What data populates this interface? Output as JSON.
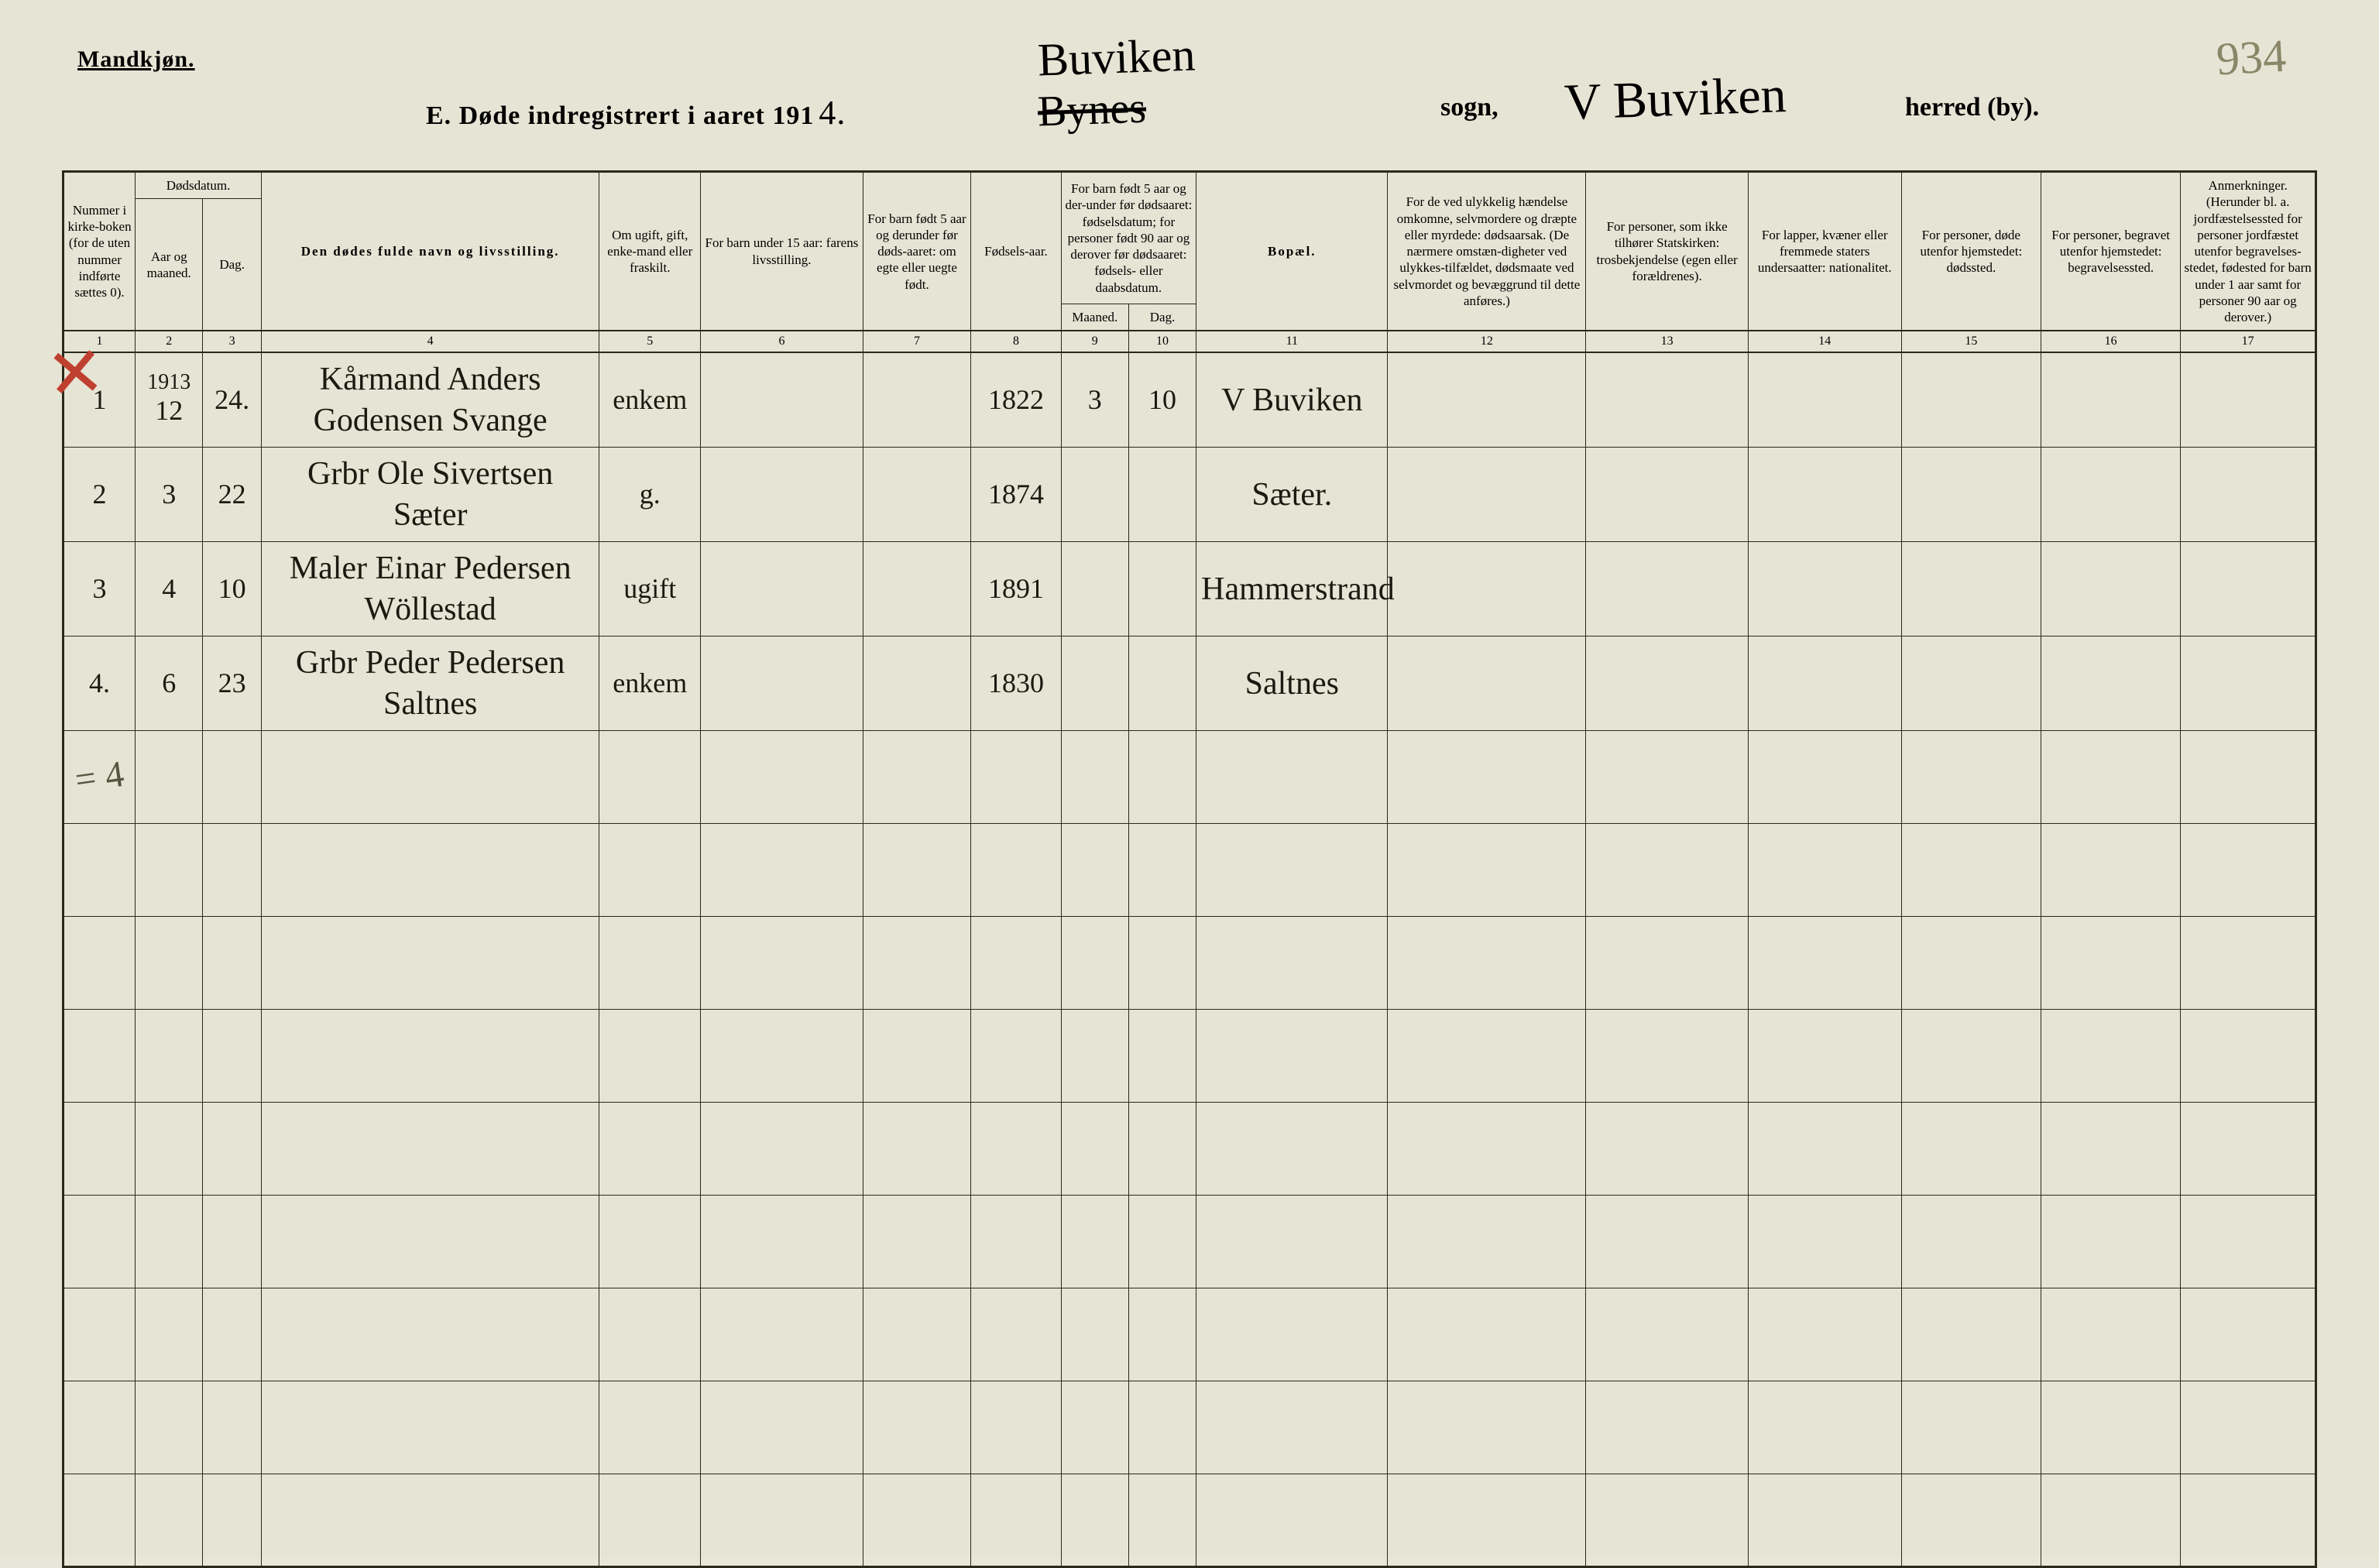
{
  "header": {
    "gender": "Mandkjøn.",
    "title_prefix": "E.  Døde indregistrert i aaret 191",
    "title_year_handwritten": "4.",
    "sogn_script_top": "Buviken",
    "sogn_script_struck": "Bynes",
    "sogn_label": "sogn,",
    "herred_script": "V Buviken",
    "herred_label": "herred (by).",
    "page_number": "934"
  },
  "columns": {
    "c1": "Nummer i kirke-boken (for de uten nummer indførte sættes 0).",
    "c2_group": "Dødsdatum.",
    "c2": "Aar og maaned.",
    "c3": "Dag.",
    "c4": "Den dødes fulde navn og livsstilling.",
    "c5": "Om ugift, gift, enke-mand eller fraskilt.",
    "c6": "For barn under 15 aar: farens livsstilling.",
    "c7": "For barn født 5 aar og derunder før døds-aaret: om egte eller uegte født.",
    "c8": "Fødsels-aar.",
    "c9_10_group": "For barn født 5 aar og der-under før dødsaaret: fødselsdatum; for personer født 90 aar og derover før dødsaaret: fødsels- eller daabsdatum.",
    "c9": "Maaned.",
    "c10": "Dag.",
    "c11": "Bopæl.",
    "c12": "For de ved ulykkelig hændelse omkomne, selvmordere og dræpte eller myrdede: dødsaarsak. (De nærmere omstæn-digheter ved ulykkes-tilfældet, dødsmaate ved selvmordet og bevæggrund til dette anføres.)",
    "c13": "For personer, som ikke tilhører Statskirken: trosbekjendelse (egen eller forældrenes).",
    "c14": "For lapper, kvæner eller fremmede staters undersaatter: nationalitet.",
    "c15": "For personer, døde utenfor hjemstedet: dødssted.",
    "c16": "For personer, begravet utenfor hjemstedet: begravelsessted.",
    "c17": "Anmerkninger. (Herunder bl. a. jordfæstelsessted for personer jordfæstet utenfor begravelses-stedet, fødested for barn under 1 aar samt for personer 90 aar og derover.)"
  },
  "colnums": [
    "1",
    "2",
    "3",
    "4",
    "5",
    "6",
    "7",
    "8",
    "9",
    "10",
    "11",
    "12",
    "13",
    "14",
    "15",
    "16",
    "17"
  ],
  "rows": [
    {
      "num": "1",
      "year_above": "1913",
      "month": "12",
      "day": "24.",
      "name": "Kårmand Anders Godensen Svange",
      "status": "enkem",
      "col6": "",
      "col7": "",
      "birth_year": "1822",
      "b_month": "3",
      "b_day": "10",
      "residence": "V Buviken",
      "col12": "",
      "col13": "",
      "col14": "",
      "col15": "",
      "col16": "",
      "col17": ""
    },
    {
      "num": "2",
      "year_above": "",
      "month": "3",
      "day": "22",
      "name": "Grbr Ole Sivertsen Sæter",
      "status": "g.",
      "col6": "",
      "col7": "",
      "birth_year": "1874",
      "b_month": "",
      "b_day": "",
      "residence": "Sæter.",
      "col12": "",
      "col13": "",
      "col14": "",
      "col15": "",
      "col16": "",
      "col17": ""
    },
    {
      "num": "3",
      "year_above": "",
      "month": "4",
      "day": "10",
      "name": "Maler Einar Pedersen Wöllestad",
      "status": "ugift",
      "col6": "",
      "col7": "",
      "birth_year": "1891",
      "b_month": "",
      "b_day": "",
      "residence": "Hammerstrand",
      "col12": "",
      "col13": "",
      "col14": "",
      "col15": "",
      "col16": "",
      "col17": ""
    },
    {
      "num": "4.",
      "year_above": "",
      "month": "6",
      "day": "23",
      "name": "Grbr Peder Pedersen Saltnes",
      "status": "enkem",
      "col6": "",
      "col7": "",
      "birth_year": "1830",
      "b_month": "",
      "b_day": "",
      "residence": "Saltnes",
      "col12": "",
      "col13": "",
      "col14": "",
      "col15": "",
      "col16": "",
      "col17": ""
    }
  ],
  "tally": "= 4",
  "styling": {
    "page_bg": "#e6e4d4",
    "ink": "#1a1a10",
    "rule": "#2a2a1a",
    "red": "#c04030",
    "faded": "#8a8668",
    "header_font_pt": 34,
    "body_script_pt": 42,
    "col_header_pt": 17,
    "empty_rows": 9
  },
  "col_widths_pct": [
    3.2,
    3.0,
    2.6,
    15.0,
    4.5,
    7.2,
    4.8,
    4.0,
    3.0,
    3.0,
    8.5,
    8.8,
    7.2,
    6.8,
    6.2,
    6.2,
    6.0
  ]
}
